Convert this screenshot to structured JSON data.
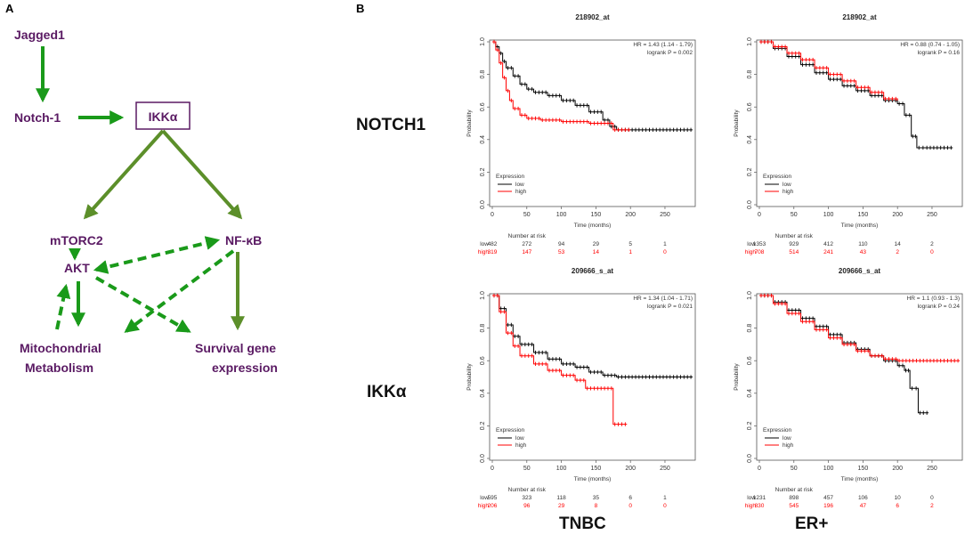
{
  "panel_a": {
    "label": "A",
    "nodes": {
      "jagged1": "Jagged1",
      "notch1": "Notch-1",
      "ikka": "IKKα",
      "mtorc2": "mTORC2",
      "nfkb": "NF-κB",
      "akt": "AKT",
      "mito_line1": "Mitochondrial",
      "mito_line2": "Metabolism",
      "surv_line1": "Survival gene",
      "surv_line2": "expression"
    },
    "colors": {
      "node_text": "#5a1a63",
      "arrow_green": "#1a9a1a",
      "arrow_olive": "#5c8f2a"
    }
  },
  "panel_b": {
    "label": "B",
    "row_labels": [
      "NOTCH1",
      "IKKα"
    ],
    "col_labels": [
      "TNBC",
      "ER+"
    ],
    "colors": {
      "low": "#000000",
      "high": "#ff0000"
    }
  },
  "chart_data": [
    {
      "type": "line",
      "title": "218902_at",
      "xlabel": "Time (months)",
      "ylabel": "Probability",
      "xlim": [
        0,
        290
      ],
      "ylim": [
        0,
        1
      ],
      "xticks": [
        "0",
        "50",
        "100",
        "150",
        "200",
        "250"
      ],
      "yticks": [
        "0.0",
        "0.2",
        "0.4",
        "0.6",
        "0.8",
        "1.0"
      ],
      "hr": "HR = 1.43 (1.14 - 1.79)",
      "logrank": "logrank P = 0.002",
      "legend_title": "Expression",
      "legend": [
        "low",
        "high"
      ],
      "risk_title": "Number at risk",
      "risk_low": [
        "482",
        "272",
        "94",
        "29",
        "5",
        "1"
      ],
      "risk_high": [
        "319",
        "147",
        "53",
        "14",
        "1",
        "0"
      ],
      "series": [
        {
          "name": "low",
          "x": [
            0,
            5,
            10,
            15,
            20,
            30,
            40,
            50,
            60,
            80,
            100,
            120,
            140,
            160,
            170,
            180,
            200,
            240,
            290
          ],
          "y": [
            1.0,
            0.97,
            0.93,
            0.88,
            0.84,
            0.79,
            0.74,
            0.71,
            0.69,
            0.67,
            0.64,
            0.61,
            0.57,
            0.52,
            0.48,
            0.46,
            0.46,
            0.46,
            0.46
          ]
        },
        {
          "name": "high",
          "x": [
            0,
            5,
            10,
            15,
            20,
            25,
            30,
            40,
            50,
            70,
            100,
            130,
            140,
            170,
            175,
            200
          ],
          "y": [
            1.0,
            0.95,
            0.87,
            0.78,
            0.7,
            0.64,
            0.59,
            0.55,
            0.53,
            0.52,
            0.51,
            0.51,
            0.5,
            0.5,
            0.46,
            0.46
          ]
        }
      ]
    },
    {
      "type": "line",
      "title": "218902_at",
      "xlabel": "Time (months)",
      "ylabel": "Probability",
      "xlim": [
        0,
        290
      ],
      "ylim": [
        0,
        1
      ],
      "xticks": [
        "0",
        "50",
        "100",
        "150",
        "200",
        "250"
      ],
      "yticks": [
        "0.0",
        "0.2",
        "0.4",
        "0.6",
        "0.8",
        "1.0"
      ],
      "hr": "HR = 0.88 (0.74 - 1.05)",
      "logrank": "logrank P = 0.16",
      "legend_title": "Expression",
      "legend": [
        "low",
        "high"
      ],
      "risk_title": "Number at risk",
      "risk_low": [
        "1353",
        "929",
        "412",
        "110",
        "14",
        "2"
      ],
      "risk_high": [
        "708",
        "514",
        "241",
        "43",
        "2",
        "0"
      ],
      "series": [
        {
          "name": "low",
          "x": [
            0,
            20,
            40,
            60,
            80,
            100,
            120,
            140,
            160,
            180,
            200,
            210,
            220,
            228,
            240,
            280
          ],
          "y": [
            1.0,
            0.96,
            0.91,
            0.86,
            0.81,
            0.77,
            0.73,
            0.7,
            0.67,
            0.64,
            0.62,
            0.55,
            0.42,
            0.35,
            0.35,
            0.35
          ]
        },
        {
          "name": "high",
          "x": [
            0,
            20,
            40,
            60,
            80,
            100,
            120,
            140,
            160,
            180,
            200
          ],
          "y": [
            1.0,
            0.97,
            0.93,
            0.89,
            0.84,
            0.8,
            0.76,
            0.72,
            0.69,
            0.65,
            0.64
          ]
        }
      ]
    },
    {
      "type": "line",
      "title": "209666_s_at",
      "xlabel": "Time (months)",
      "ylabel": "Probability",
      "xlim": [
        0,
        290
      ],
      "ylim": [
        0,
        1
      ],
      "xticks": [
        "0",
        "50",
        "100",
        "150",
        "200",
        "250"
      ],
      "yticks": [
        "0.0",
        "0.2",
        "0.4",
        "0.6",
        "0.8",
        "1.0"
      ],
      "hr": "HR = 1.34 (1.04 - 1.71)",
      "logrank": "logrank P = 0.021",
      "legend_title": "Expression",
      "legend": [
        "low",
        "high"
      ],
      "risk_title": "Number at risk",
      "risk_low": [
        "595",
        "323",
        "118",
        "35",
        "6",
        "1"
      ],
      "risk_high": [
        "206",
        "96",
        "29",
        "8",
        "0",
        "0"
      ],
      "series": [
        {
          "name": "low",
          "x": [
            0,
            10,
            20,
            30,
            40,
            60,
            80,
            100,
            120,
            140,
            160,
            180,
            290
          ],
          "y": [
            1.0,
            0.92,
            0.82,
            0.75,
            0.7,
            0.65,
            0.61,
            0.58,
            0.56,
            0.53,
            0.51,
            0.5,
            0.5
          ]
        },
        {
          "name": "high",
          "x": [
            0,
            10,
            20,
            30,
            40,
            60,
            80,
            100,
            120,
            135,
            150,
            170,
            175,
            195
          ],
          "y": [
            1.0,
            0.9,
            0.77,
            0.69,
            0.63,
            0.58,
            0.54,
            0.51,
            0.48,
            0.43,
            0.43,
            0.43,
            0.21,
            0.21
          ]
        }
      ]
    },
    {
      "type": "line",
      "title": "209666_s_at",
      "xlabel": "Time (months)",
      "ylabel": "Probability",
      "xlim": [
        0,
        290
      ],
      "ylim": [
        0,
        1
      ],
      "xticks": [
        "0",
        "50",
        "100",
        "150",
        "200",
        "250"
      ],
      "yticks": [
        "0.0",
        "0.2",
        "0.4",
        "0.6",
        "0.8",
        "1.0"
      ],
      "hr": "HR = 1.1 (0.93 - 1.3)",
      "logrank": "logrank P = 0.24",
      "legend_title": "Expression",
      "legend": [
        "low",
        "high"
      ],
      "risk_title": "Number at risk",
      "risk_low": [
        "1231",
        "898",
        "457",
        "106",
        "10",
        "0"
      ],
      "risk_high": [
        "830",
        "545",
        "196",
        "47",
        "6",
        "2"
      ],
      "series": [
        {
          "name": "low",
          "x": [
            0,
            20,
            40,
            60,
            80,
            100,
            120,
            140,
            160,
            180,
            200,
            210,
            218,
            230,
            245
          ],
          "y": [
            1.0,
            0.96,
            0.91,
            0.86,
            0.81,
            0.76,
            0.71,
            0.67,
            0.63,
            0.6,
            0.57,
            0.54,
            0.43,
            0.28,
            0.28
          ]
        },
        {
          "name": "high",
          "x": [
            0,
            20,
            40,
            60,
            80,
            100,
            120,
            140,
            160,
            180,
            200,
            290
          ],
          "y": [
            1.0,
            0.95,
            0.89,
            0.84,
            0.79,
            0.74,
            0.7,
            0.66,
            0.63,
            0.61,
            0.6,
            0.6
          ]
        }
      ]
    }
  ]
}
